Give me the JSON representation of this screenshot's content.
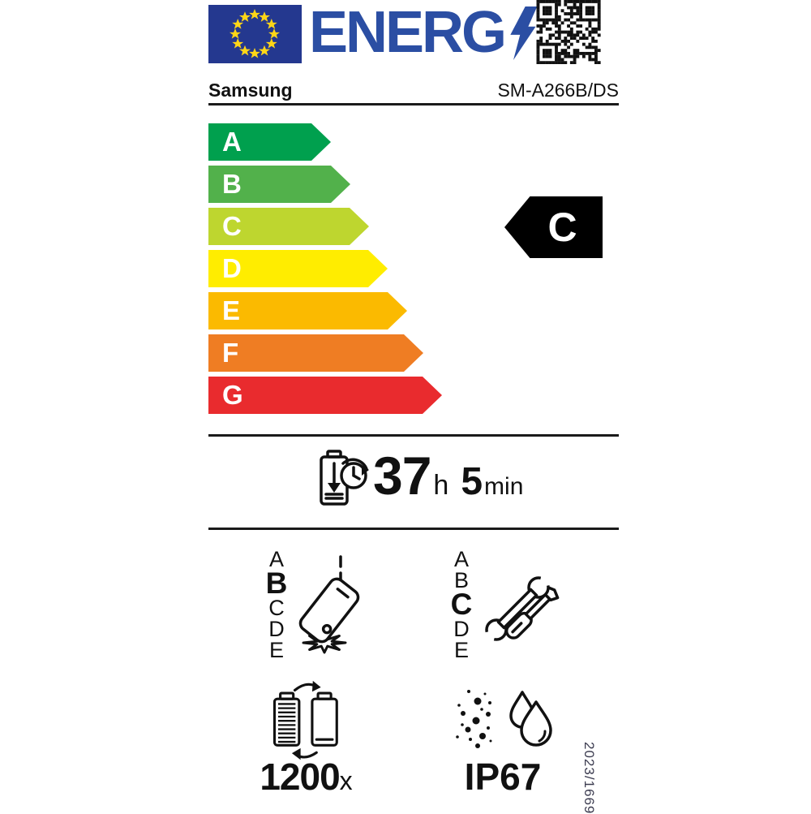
{
  "label": {
    "logo_text": "ENERG",
    "brand": "Samsung",
    "model": "SM-A266B/DS",
    "regulation_number": "2023/1669",
    "energy_scale": {
      "grades": [
        {
          "letter": "A",
          "color": "#00a04e"
        },
        {
          "letter": "B",
          "color": "#52b14b"
        },
        {
          "letter": "C",
          "color": "#bed62f"
        },
        {
          "letter": "D",
          "color": "#ffed00"
        },
        {
          "letter": "E",
          "color": "#fbba00"
        },
        {
          "letter": "F",
          "color": "#ef7d23"
        },
        {
          "letter": "G",
          "color": "#e92b2e"
        }
      ],
      "rating": "C",
      "rating_badge_color": "#000000"
    },
    "battery_endurance": {
      "hours": "37",
      "hours_unit": "h",
      "minutes": "5",
      "minutes_unit": "min"
    },
    "drop_reliability": {
      "scale": [
        "A",
        "B",
        "C",
        "D",
        "E"
      ],
      "rating": "B"
    },
    "repairability": {
      "scale": [
        "A",
        "B",
        "C",
        "D",
        "E"
      ],
      "rating": "C"
    },
    "battery_cycles": {
      "value": "1200",
      "unit": "x"
    },
    "ingress_protection": {
      "rating": "IP67"
    },
    "colors": {
      "eu_blue": "#24388f",
      "logo_blue": "#2b4ea3",
      "star_yellow": "#ffd617"
    },
    "icons": [
      "eu-flag-icon",
      "lightning-bolt-icon",
      "qr-code-icon",
      "battery-duration-clock-icon",
      "phone-drop-impact-icon",
      "repair-tools-icon",
      "battery-recharge-cycles-icon",
      "dust-water-resistance-icon"
    ]
  }
}
